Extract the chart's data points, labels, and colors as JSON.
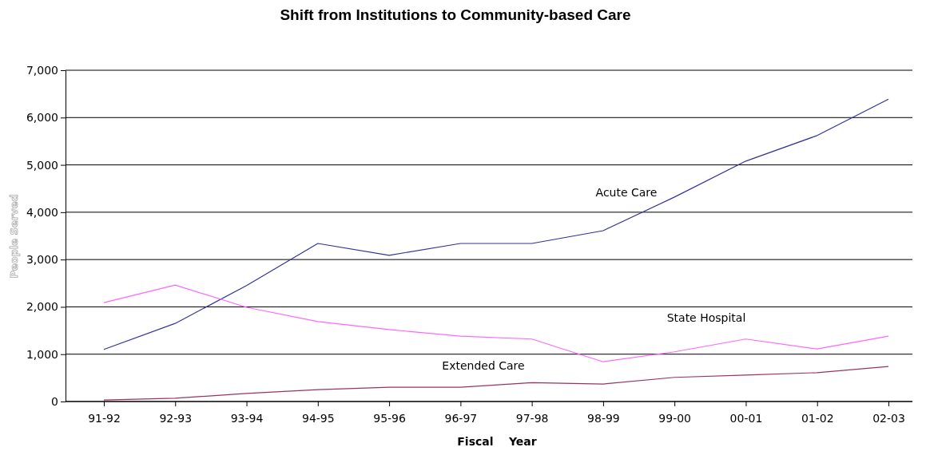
{
  "chart_data": {
    "type": "line",
    "title": "Shift from Institutions to Community-based Care",
    "xlabel": "Fiscal    Year",
    "ylabel": "People Served",
    "categories": [
      "91-92",
      "92-93",
      "93-94",
      "94-95",
      "95-96",
      "96-97",
      "97-98",
      "98-99",
      "99-00",
      "00-01",
      "01-02",
      "02-03"
    ],
    "series": [
      {
        "name": "Acute Care",
        "color": "#333399",
        "values": [
          1100,
          1650,
          2450,
          3340,
          3090,
          3340,
          3340,
          3610,
          4320,
          5080,
          5620,
          6390
        ]
      },
      {
        "name": "State Hospital",
        "color": "#ff66ff",
        "values": [
          2090,
          2460,
          1990,
          1690,
          1520,
          1380,
          1320,
          840,
          1050,
          1320,
          1110,
          1380
        ]
      },
      {
        "name": "Extended Care",
        "color": "#993366",
        "values": [
          30,
          70,
          170,
          250,
          300,
          300,
          400,
          370,
          510,
          560,
          610,
          740
        ]
      }
    ],
    "ylim": [
      0,
      7000
    ],
    "yticks": [
      {
        "value": 0,
        "label": "0"
      },
      {
        "value": 1000,
        "label": "1,000"
      },
      {
        "value": 2000,
        "label": "2,000"
      },
      {
        "value": 3000,
        "label": "3,000"
      },
      {
        "value": 4000,
        "label": "4,000"
      },
      {
        "value": 5000,
        "label": "5,000"
      },
      {
        "value": 6000,
        "label": "6,000"
      },
      {
        "value": 7000,
        "label": "7,000"
      }
    ],
    "grid": "y",
    "marker": "none",
    "line_style": "solid"
  }
}
